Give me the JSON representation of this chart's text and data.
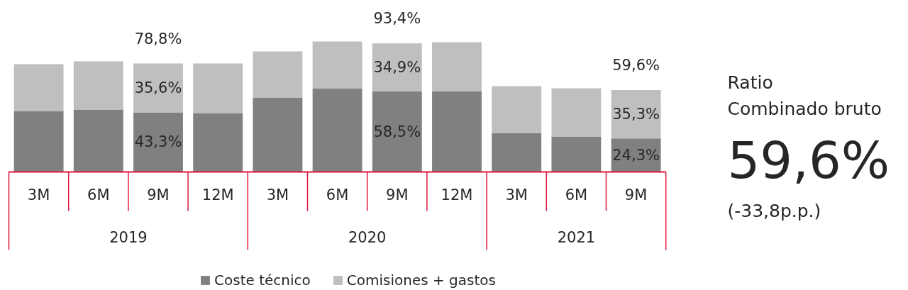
{
  "chart_data": [
    {
      "type": "bar",
      "stacked": true,
      "legend": "bottom",
      "categories": [
        "3M",
        "6M",
        "9M",
        "12M",
        "3M",
        "6M",
        "9M",
        "12M",
        "3M",
        "6M",
        "9M"
      ],
      "series": [
        {
          "name": "Coste técnico",
          "color": "#808080",
          "values": [
            44.3,
            45.4,
            43.3,
            42.8,
            54.1,
            60.8,
            58.5,
            58.8,
            28.4,
            25.8,
            24.3
          ],
          "value_labels": [
            null,
            null,
            "43,3%",
            null,
            null,
            null,
            "58,5%",
            null,
            null,
            null,
            "24,3%"
          ]
        },
        {
          "name": "Comisiones + gastos",
          "color": "#bfbfbf",
          "values": [
            34.1,
            35.0,
            35.6,
            36.1,
            33.5,
            34.0,
            34.9,
            35.5,
            34.0,
            35.0,
            35.3
          ],
          "value_labels": [
            null,
            null,
            "35,6%",
            null,
            null,
            null,
            "34,9%",
            null,
            null,
            null,
            "35,3%"
          ]
        }
      ],
      "totals": [
        null,
        null,
        "78,8%",
        null,
        null,
        null,
        "93,4%",
        null,
        null,
        null,
        "59,6%"
      ],
      "annotations": [
        "2019",
        "2020",
        "2021"
      ]
    },
    {
      "type": "other",
      "title": "Ratio Combinado bruto",
      "annotations": [
        "59,6%",
        "(-33,8p.p.)"
      ]
    }
  ]
}
